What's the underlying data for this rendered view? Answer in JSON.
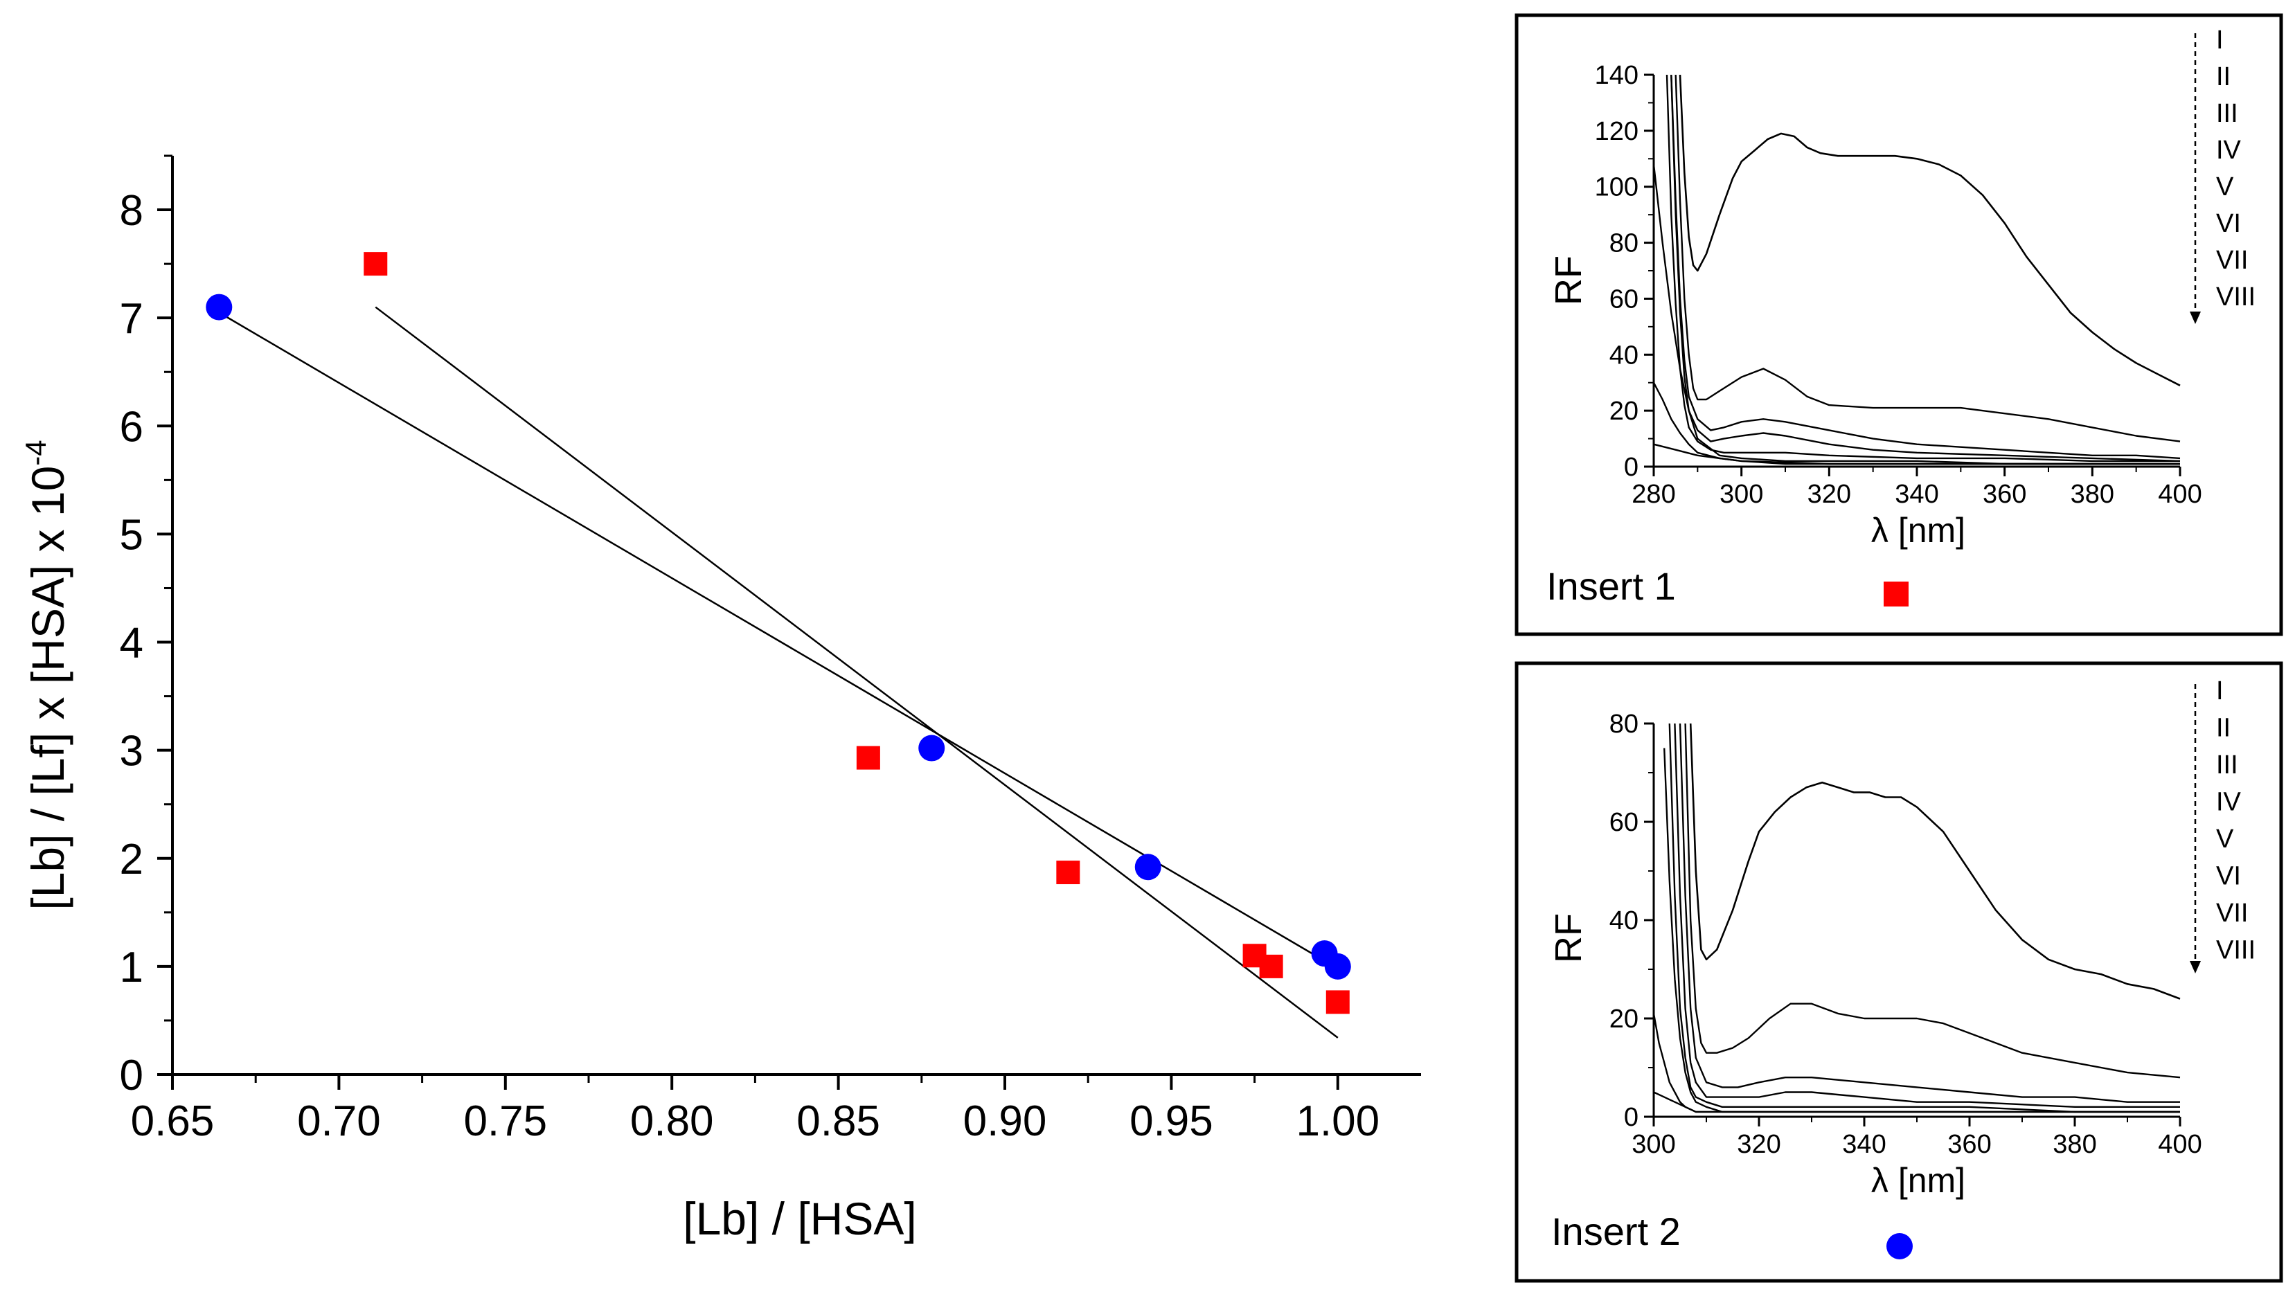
{
  "chart_data": [
    {
      "type": "scatter",
      "title": "",
      "xlabel": "[Lb] / [HSA]",
      "ylabel": "[Lb] / [Lf] x [HSA] x 10",
      "ylabel_exponent": "-4",
      "xlim": [
        0.65,
        1.025
      ],
      "ylim": [
        0,
        8.5
      ],
      "x_ticks": [
        0.65,
        0.7,
        0.75,
        0.8,
        0.85,
        0.9,
        0.95,
        1.0
      ],
      "x_tick_labels": [
        "0.65",
        "0.70",
        "0.75",
        "0.80",
        "0.85",
        "0.90",
        "0.95",
        "1.00"
      ],
      "y_ticks": [
        0,
        1,
        2,
        3,
        4,
        5,
        6,
        7,
        8
      ],
      "y_tick_labels": [
        "0",
        "1",
        "2",
        "3",
        "4",
        "5",
        "6",
        "7",
        "8"
      ],
      "series": [
        {
          "name": "Insert 1",
          "marker": "square",
          "color": "#ff0000",
          "x": [
            0.711,
            0.859,
            0.919,
            0.975,
            0.98,
            1.0
          ],
          "y": [
            7.5,
            2.93,
            1.87,
            1.1,
            1.0,
            0.67
          ],
          "fit_line": {
            "x": [
              0.711,
              1.0
            ],
            "y": [
              7.1,
              0.34
            ]
          }
        },
        {
          "name": "Insert 2",
          "marker": "circle",
          "color": "#0000ff",
          "x": [
            0.664,
            0.878,
            0.943,
            0.996,
            1.0
          ],
          "y": [
            7.1,
            3.02,
            1.92,
            1.12,
            1.0
          ],
          "fit_line": {
            "x": [
              0.664,
              1.0
            ],
            "y": [
              7.05,
              0.98
            ]
          }
        }
      ]
    },
    {
      "type": "line",
      "title": "Insert 1",
      "marker_symbol": "square",
      "marker_color": "#ff0000",
      "xlabel": "λ [nm]",
      "ylabel": "RF",
      "xlim": [
        280,
        400
      ],
      "ylim": [
        0,
        140
      ],
      "x_ticks": [
        280,
        300,
        320,
        340,
        360,
        380,
        400
      ],
      "x_tick_labels": [
        "280",
        "300",
        "320",
        "340",
        "360",
        "380",
        "400"
      ],
      "y_ticks": [
        0,
        20,
        40,
        60,
        80,
        100,
        120,
        140
      ],
      "y_tick_labels": [
        "0",
        "20",
        "40",
        "60",
        "80",
        "100",
        "120",
        "140"
      ],
      "legend": [
        "I",
        "II",
        "III",
        "IV",
        "V",
        "VI",
        "VII",
        "VIII"
      ],
      "series": [
        {
          "name": "I",
          "x": [
            286,
            287,
            288,
            289,
            290,
            292,
            295,
            298,
            300,
            303,
            306,
            309,
            312,
            315,
            318,
            322,
            328,
            335,
            340,
            345,
            350,
            355,
            360,
            365,
            370,
            375,
            380,
            385,
            390,
            395,
            400
          ],
          "y": [
            140,
            105,
            82,
            72,
            70,
            76,
            90,
            103,
            109,
            113,
            117,
            119,
            118,
            114,
            112,
            111,
            111,
            111,
            110,
            108,
            104,
            97,
            87,
            75,
            65,
            55,
            48,
            42,
            37,
            33,
            29
          ]
        },
        {
          "name": "II",
          "x": [
            285,
            286,
            287,
            288,
            289,
            290,
            292,
            295,
            300,
            305,
            310,
            315,
            320,
            330,
            340,
            350,
            360,
            370,
            380,
            390,
            400
          ],
          "y": [
            140,
            95,
            60,
            40,
            28,
            24,
            24,
            27,
            32,
            35,
            31,
            25,
            22,
            21,
            21,
            21,
            19,
            17,
            14,
            11,
            9
          ]
        },
        {
          "name": "III",
          "x": [
            284,
            285,
            286,
            287,
            288,
            290,
            293,
            296,
            300,
            305,
            310,
            320,
            330,
            340,
            350,
            360,
            370,
            380,
            390,
            400
          ],
          "y": [
            140,
            95,
            60,
            38,
            25,
            17,
            13,
            14,
            16,
            17,
            16,
            13,
            10,
            8,
            7,
            6,
            5,
            4,
            4,
            3
          ]
        },
        {
          "name": "IV",
          "x": [
            284,
            285,
            286,
            287,
            288,
            290,
            293,
            296,
            300,
            305,
            310,
            320,
            330,
            340,
            360,
            380,
            400
          ],
          "y": [
            140,
            90,
            55,
            32,
            20,
            13,
            9,
            10,
            11,
            12,
            11,
            8,
            6,
            5,
            4,
            3,
            2
          ]
        },
        {
          "name": "V",
          "x": [
            283,
            284,
            285,
            286,
            287,
            288,
            290,
            293,
            296,
            300,
            310,
            320,
            340,
            360,
            380,
            400
          ],
          "y": [
            140,
            90,
            58,
            35,
            22,
            14,
            9,
            6,
            5,
            5,
            5,
            4,
            3,
            3,
            2,
            2
          ]
        },
        {
          "name": "VI",
          "x": [
            280,
            282,
            284,
            286,
            288,
            290,
            295,
            300,
            310,
            320,
            340,
            360,
            380,
            400
          ],
          "y": [
            108,
            80,
            55,
            35,
            20,
            10,
            4,
            3,
            2,
            2,
            2,
            1,
            1,
            1
          ]
        },
        {
          "name": "VII",
          "x": [
            280,
            282,
            284,
            286,
            288,
            290,
            295,
            300,
            310,
            330,
            360,
            400
          ],
          "y": [
            30,
            24,
            17,
            12,
            8,
            5,
            3,
            2,
            1,
            1,
            1,
            1
          ]
        },
        {
          "name": "VIII",
          "x": [
            280,
            285,
            290,
            295,
            300,
            320,
            360,
            400
          ],
          "y": [
            8,
            6,
            4,
            3,
            2,
            1,
            1,
            1
          ]
        }
      ]
    },
    {
      "type": "line",
      "title": "Insert 2",
      "marker_symbol": "circle",
      "marker_color": "#0000ff",
      "xlabel": "λ [nm]",
      "ylabel": "RF",
      "xlim": [
        300,
        400
      ],
      "ylim": [
        0,
        80
      ],
      "x_ticks": [
        300,
        320,
        340,
        360,
        380,
        400
      ],
      "x_tick_labels": [
        "300",
        "320",
        "340",
        "360",
        "380",
        "400"
      ],
      "y_ticks": [
        0,
        20,
        40,
        60,
        80
      ],
      "y_tick_labels": [
        "0",
        "20",
        "40",
        "60",
        "80"
      ],
      "legend": [
        "I",
        "II",
        "III",
        "IV",
        "V",
        "VI",
        "VII",
        "VIII"
      ],
      "series": [
        {
          "name": "I",
          "x": [
            307,
            308,
            309,
            310,
            312,
            315,
            318,
            320,
            323,
            326,
            329,
            332,
            335,
            338,
            341,
            344,
            347,
            350,
            355,
            360,
            365,
            370,
            375,
            380,
            385,
            390,
            395,
            400
          ],
          "y": [
            80,
            50,
            34,
            32,
            34,
            42,
            52,
            58,
            62,
            65,
            67,
            68,
            67,
            66,
            66,
            65,
            65,
            63,
            58,
            50,
            42,
            36,
            32,
            30,
            29,
            27,
            26,
            24
          ]
        },
        {
          "name": "II",
          "x": [
            306,
            307,
            308,
            309,
            310,
            312,
            315,
            318,
            322,
            326,
            330,
            335,
            340,
            345,
            350,
            355,
            360,
            365,
            370,
            380,
            390,
            400
          ],
          "y": [
            80,
            40,
            22,
            15,
            13,
            13,
            14,
            16,
            20,
            23,
            23,
            21,
            20,
            20,
            20,
            19,
            17,
            15,
            13,
            11,
            9,
            8
          ]
        },
        {
          "name": "III",
          "x": [
            305,
            306,
            307,
            308,
            310,
            313,
            316,
            320,
            325,
            330,
            340,
            350,
            360,
            370,
            380,
            390,
            400
          ],
          "y": [
            80,
            45,
            22,
            12,
            7,
            6,
            6,
            7,
            8,
            8,
            7,
            6,
            5,
            4,
            4,
            3,
            3
          ]
        },
        {
          "name": "IV",
          "x": [
            304,
            305,
            306,
            307,
            308,
            310,
            313,
            316,
            320,
            325,
            330,
            340,
            350,
            360,
            380,
            400
          ],
          "y": [
            80,
            45,
            22,
            11,
            7,
            4,
            4,
            4,
            4,
            5,
            5,
            4,
            3,
            3,
            2,
            2
          ]
        },
        {
          "name": "V",
          "x": [
            303,
            304,
            305,
            306,
            307,
            308,
            310,
            313,
            316,
            320,
            330,
            340,
            360,
            380,
            400
          ],
          "y": [
            80,
            45,
            22,
            12,
            6,
            4,
            3,
            2,
            2,
            2,
            2,
            2,
            2,
            1,
            1
          ]
        },
        {
          "name": "VI",
          "x": [
            302,
            303,
            304,
            305,
            306,
            307,
            308,
            310,
            313,
            316,
            320,
            330,
            350,
            380,
            400
          ],
          "y": [
            75,
            48,
            28,
            16,
            9,
            5,
            3,
            2,
            1,
            1,
            1,
            1,
            1,
            1,
            1
          ]
        },
        {
          "name": "VII",
          "x": [
            300,
            301,
            302,
            303,
            304,
            305,
            306,
            308,
            310,
            313,
            320,
            340,
            400
          ],
          "y": [
            21,
            15,
            11,
            7,
            5,
            3,
            2,
            1,
            1,
            1,
            1,
            1,
            1
          ]
        },
        {
          "name": "VIII",
          "x": [
            300,
            302,
            304,
            306,
            308,
            310,
            320,
            340,
            400
          ],
          "y": [
            5,
            4,
            3,
            2,
            1,
            1,
            1,
            1,
            1
          ]
        }
      ]
    }
  ]
}
